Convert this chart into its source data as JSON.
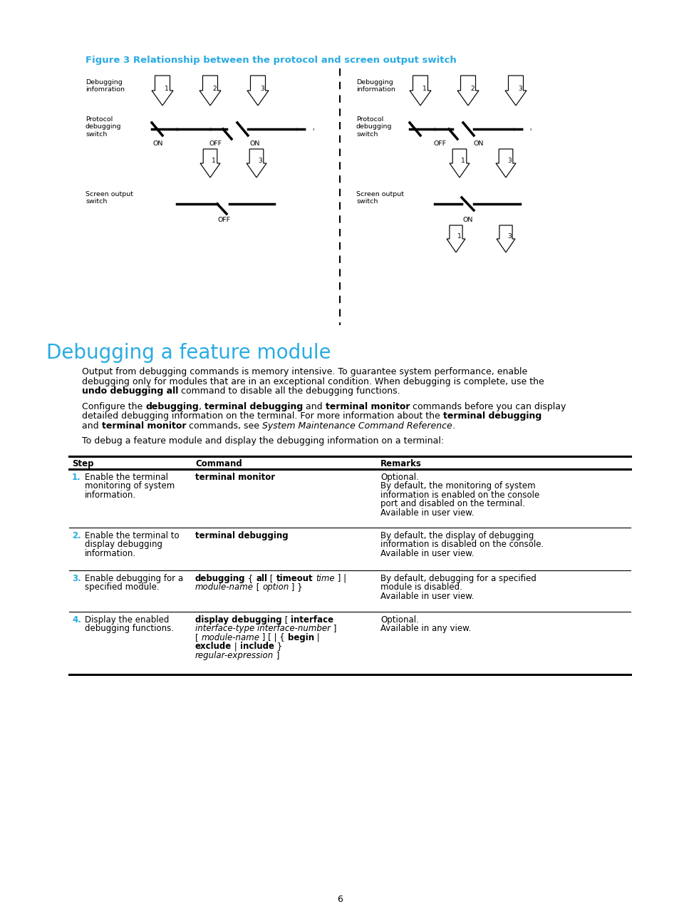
{
  "figure_title": "Figure 3 Relationship between the protocol and screen output switch",
  "figure_title_color": "#29ABE2",
  "section_title": "Debugging a feature module",
  "section_title_color": "#29ABE2",
  "bg_color": "#ffffff",
  "page_number": "6",
  "body_font_size": 9.0,
  "table_font_size": 8.5,
  "section_font_size": 20
}
